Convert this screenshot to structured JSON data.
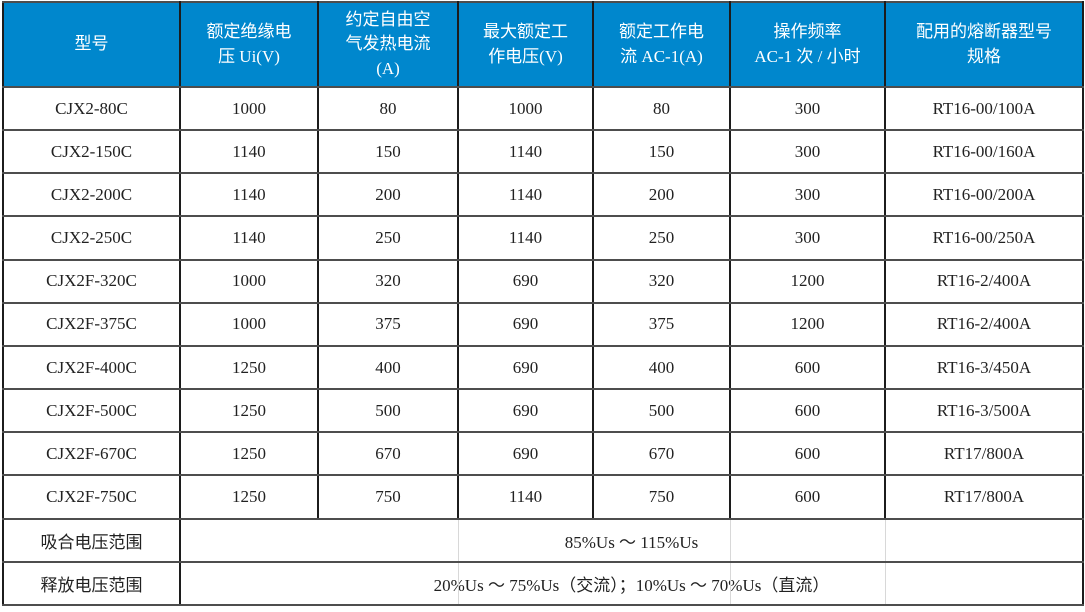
{
  "table": {
    "columns": [
      {
        "key": "model",
        "label": "型号"
      },
      {
        "key": "rated-insulation-voltage",
        "label": "额定绝缘电\n压 Ui(V)"
      },
      {
        "key": "free-air-thermal-current",
        "label": "约定自由空\n气发热电流\n(A)"
      },
      {
        "key": "max-rated-working-voltage",
        "label": "最大额定工\n作电压(V)"
      },
      {
        "key": "rated-working-current-ac1",
        "label": "额定工作电\n流 AC-1(A)"
      },
      {
        "key": "operating-frequency",
        "label": "操作频率\nAC-1 次 / 小时"
      },
      {
        "key": "fuse-model",
        "label": "配用的熔断器型号\n规格"
      }
    ],
    "rows": [
      [
        "CJX2-80C",
        "1000",
        "80",
        "1000",
        "80",
        "300",
        "RT16-00/100A"
      ],
      [
        "CJX2-150C",
        "1140",
        "150",
        "1140",
        "150",
        "300",
        "RT16-00/160A"
      ],
      [
        "CJX2-200C",
        "1140",
        "200",
        "1140",
        "200",
        "300",
        "RT16-00/200A"
      ],
      [
        "CJX2-250C",
        "1140",
        "250",
        "1140",
        "250",
        "300",
        "RT16-00/250A"
      ],
      [
        "CJX2F-320C",
        "1000",
        "320",
        "690",
        "320",
        "1200",
        "RT16-2/400A"
      ],
      [
        "CJX2F-375C",
        "1000",
        "375",
        "690",
        "375",
        "1200",
        "RT16-2/400A"
      ],
      [
        "CJX2F-400C",
        "1250",
        "400",
        "690",
        "400",
        "600",
        "RT16-3/450A"
      ],
      [
        "CJX2F-500C",
        "1250",
        "500",
        "690",
        "500",
        "600",
        "RT16-3/500A"
      ],
      [
        "CJX2F-670C",
        "1250",
        "670",
        "690",
        "670",
        "600",
        "RT17/800A"
      ],
      [
        "CJX2F-750C",
        "1250",
        "750",
        "1140",
        "750",
        "600",
        "RT17/800A"
      ]
    ],
    "footer_rows": [
      {
        "key": "pickup-voltage-range",
        "label": "吸合电压范围",
        "value": "85%Us ～ 115%Us"
      },
      {
        "key": "release-voltage-range",
        "label": "释放电压范围",
        "value": "20%Us ～ 75%Us（交流）；10%Us ～ 70%Us（直流）"
      }
    ],
    "colors": {
      "header_bg": "#0087CD",
      "header_text": "#FFFFFF",
      "grid_vertical": "#1C1C1C",
      "grid_horizontal": "#4D4D4D",
      "body_text": "#212121",
      "faint_line": "#D8D8D8"
    }
  }
}
